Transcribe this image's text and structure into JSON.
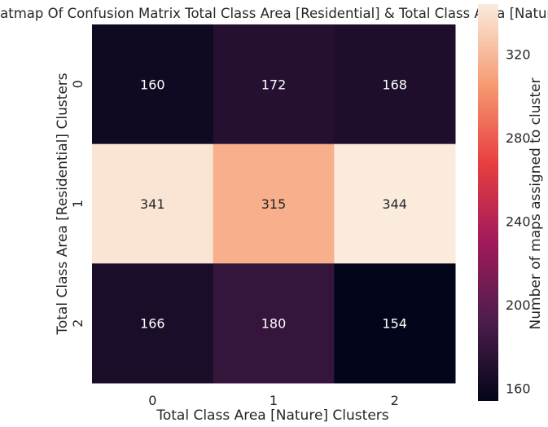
{
  "chart_data": {
    "type": "heatmap",
    "title": "Heatmap Of Confusion Matrix Total Class Area [Residential] & Total Class Area [Nature]",
    "xlabel": "Total Class Area [Nature] Clusters",
    "ylabel": "Total Class Area [Residential] Clusters",
    "x_categories": [
      "0",
      "1",
      "2"
    ],
    "y_categories": [
      "0",
      "1",
      "2"
    ],
    "values": [
      [
        160,
        172,
        168
      ],
      [
        341,
        315,
        344
      ],
      [
        166,
        180,
        154
      ]
    ],
    "colorbar": {
      "label": "Number of maps assigned to cluster",
      "range": [
        154,
        344
      ],
      "ticks": [
        160,
        200,
        240,
        280,
        320
      ]
    },
    "colormap": "rocket",
    "colormap_stops": [
      "#03051a",
      "#4c1d4b",
      "#a11a5b",
      "#e83f3f",
      "#f69c73",
      "#faebdd"
    ]
  }
}
